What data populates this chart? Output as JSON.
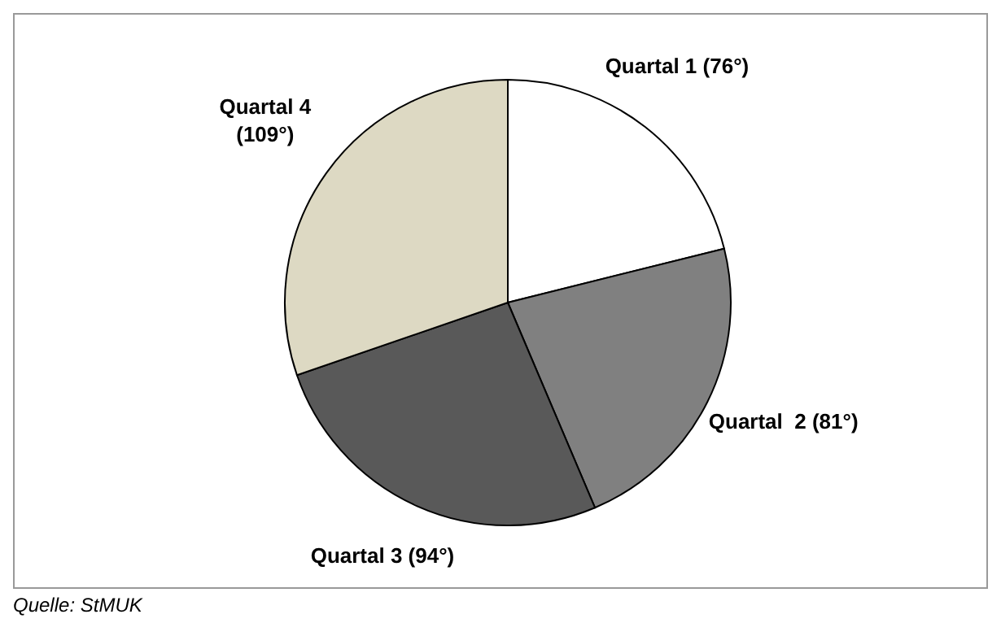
{
  "chart_data": {
    "type": "pie",
    "categories": [
      "Quartal 1",
      "Quartal  2",
      "Quartal 3",
      "Quartal 4"
    ],
    "values": [
      76,
      81,
      94,
      109
    ],
    "value_labels": [
      "(76°)",
      "(81°)",
      "(94°)",
      "(109°)"
    ],
    "colors": [
      "#ffffff",
      "#808080",
      "#595959",
      "#ddd9c3"
    ],
    "annotations": [
      "Quelle: StMUK"
    ]
  }
}
